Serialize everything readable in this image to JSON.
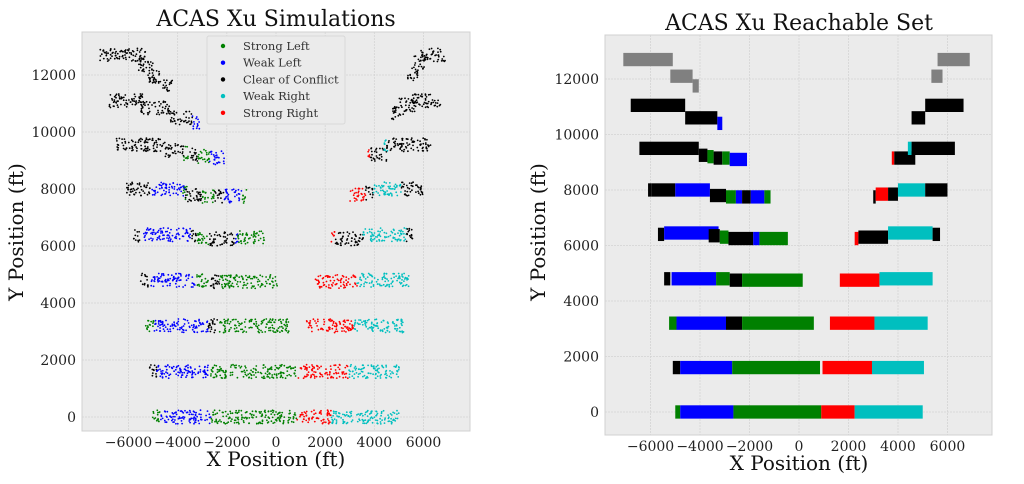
{
  "chart_data": [
    {
      "type": "scatter",
      "title": "ACAS Xu Simulations",
      "xlabel": "X Position (ft)",
      "ylabel": "Y Position (ft)",
      "xlim": [
        -7890,
        7890
      ],
      "ylim": [
        -490,
        13510
      ],
      "xticks": [
        -6000,
        -4000,
        -2000,
        0,
        2000,
        4000,
        6000
      ],
      "yticks": [
        0,
        2000,
        4000,
        6000,
        8000,
        10000,
        12000
      ],
      "grid": true,
      "legend_position": "top-center",
      "classes": [
        {
          "name": "Strong Left",
          "color": "#008000"
        },
        {
          "name": "Weak Left",
          "color": "#0000ff"
        },
        {
          "name": "Clear of Conflict",
          "color": "#000000"
        },
        {
          "name": "Weak Right",
          "color": "#00bfbf"
        },
        {
          "name": "Strong Right",
          "color": "#ff0000"
        }
      ],
      "segments_format": [
        "x_start",
        "x_end",
        "y",
        "class_index"
      ],
      "segments": [
        [
          -5050,
          -4700,
          0,
          0
        ],
        [
          -4700,
          -2650,
          0,
          1
        ],
        [
          -2650,
          850,
          0,
          0
        ],
        [
          850,
          2250,
          0,
          4
        ],
        [
          2250,
          5000,
          0,
          3
        ],
        [
          -5150,
          -4850,
          1600,
          2
        ],
        [
          -4850,
          -2700,
          1600,
          1
        ],
        [
          -2700,
          800,
          1600,
          0
        ],
        [
          900,
          2950,
          1600,
          4
        ],
        [
          2950,
          5050,
          1600,
          3
        ],
        [
          -5300,
          -4950,
          3200,
          0
        ],
        [
          -4950,
          -2750,
          3200,
          1
        ],
        [
          -2750,
          -2300,
          3200,
          2
        ],
        [
          -2300,
          550,
          3200,
          0
        ],
        [
          1200,
          3150,
          3200,
          4
        ],
        [
          3150,
          5200,
          3200,
          3
        ],
        [
          -5500,
          -5200,
          4800,
          2
        ],
        [
          -5100,
          -3300,
          4800,
          1
        ],
        [
          -3300,
          -2750,
          4800,
          0
        ],
        [
          -2750,
          -2300,
          4750,
          2
        ],
        [
          -2300,
          100,
          4750,
          0
        ],
        [
          1600,
          3300,
          4750,
          4
        ],
        [
          3300,
          5400,
          4800,
          3
        ],
        [
          -5800,
          -5550,
          6350,
          2
        ],
        [
          -5400,
          -3450,
          6400,
          1
        ],
        [
          -3450,
          -3200,
          6350,
          2
        ],
        [
          -3200,
          -2700,
          6250,
          0
        ],
        [
          -2700,
          -1700,
          6250,
          2
        ],
        [
          -1700,
          -1550,
          6250,
          1
        ],
        [
          -1550,
          -450,
          6300,
          0
        ],
        [
          2250,
          2400,
          6300,
          4
        ],
        [
          2400,
          3400,
          6250,
          2
        ],
        [
          3400,
          3550,
          6300,
          2
        ],
        [
          3550,
          5300,
          6400,
          3
        ],
        [
          5300,
          5600,
          6400,
          2
        ],
        [
          -6100,
          -5100,
          8000,
          2
        ],
        [
          -5050,
          -3700,
          8000,
          1
        ],
        [
          -3800,
          -3600,
          7850,
          0
        ],
        [
          -3700,
          -3000,
          7800,
          2
        ],
        [
          -3000,
          -2500,
          7750,
          0
        ],
        [
          -2500,
          -2100,
          7750,
          2
        ],
        [
          -2100,
          -1400,
          7750,
          1
        ],
        [
          -1400,
          -1200,
          7750,
          0
        ],
        [
          3000,
          3650,
          7800,
          4
        ],
        [
          3650,
          3950,
          7850,
          2
        ],
        [
          3950,
          5100,
          8000,
          3
        ],
        [
          5100,
          6000,
          8000,
          2
        ],
        [
          -6500,
          -4500,
          9550,
          2
        ],
        [
          -4500,
          -3750,
          9350,
          2
        ],
        [
          -3750,
          -3550,
          9250,
          0
        ],
        [
          -3550,
          -3200,
          9200,
          2
        ],
        [
          -3200,
          -2700,
          9150,
          0
        ],
        [
          -2700,
          -2100,
          9100,
          1
        ],
        [
          3750,
          3850,
          9150,
          4
        ],
        [
          3850,
          4500,
          9200,
          2
        ],
        [
          4400,
          4600,
          9550,
          3
        ],
        [
          4500,
          6300,
          9550,
          2
        ],
        [
          -6900,
          -5400,
          11100,
          2
        ],
        [
          -5500,
          -4300,
          10850,
          2
        ],
        [
          -4300,
          -3400,
          10500,
          2
        ],
        [
          -3400,
          -3100,
          10350,
          1
        ],
        [
          4700,
          5200,
          10650,
          2
        ],
        [
          5000,
          5700,
          10950,
          2
        ],
        [
          5500,
          6700,
          11100,
          2
        ],
        [
          -7200,
          -5300,
          12700,
          2
        ],
        [
          -5600,
          -5000,
          12350,
          2
        ],
        [
          -5200,
          -4500,
          11950,
          2
        ],
        [
          -4600,
          -4200,
          11650,
          2
        ],
        [
          5350,
          5800,
          12050,
          2
        ],
        [
          5600,
          6050,
          12450,
          2
        ],
        [
          5900,
          6900,
          12700,
          2
        ]
      ]
    },
    {
      "type": "area",
      "title": "ACAS Xu Reachable Set",
      "xlabel": "X Position (ft)",
      "ylabel": "Y Position (ft)",
      "xlim": [
        -7840,
        7800
      ],
      "ylim": [
        -830,
        13585
      ],
      "xticks": [
        -6000,
        -4000,
        -2000,
        0,
        2000,
        4000,
        6000
      ],
      "yticks": [
        0,
        2000,
        4000,
        6000,
        8000,
        10000,
        12000
      ],
      "grid": true,
      "classes": [
        {
          "color": "#008000"
        },
        {
          "color": "#0000ff"
        },
        {
          "color": "#000000"
        },
        {
          "color": "#00bfbf"
        },
        {
          "color": "#ff0000"
        },
        {
          "color": "#808080"
        }
      ],
      "segments_format": [
        "x_start",
        "x_end",
        "y",
        "class_index"
      ],
      "segments": [
        [
          -5000,
          -4800,
          0,
          0
        ],
        [
          -4800,
          -2650,
          0,
          1
        ],
        [
          -2650,
          900,
          0,
          0
        ],
        [
          900,
          2250,
          0,
          4
        ],
        [
          2250,
          5000,
          0,
          3
        ],
        [
          -5100,
          -4800,
          1600,
          2
        ],
        [
          -4800,
          -2700,
          1600,
          1
        ],
        [
          -2700,
          850,
          1600,
          0
        ],
        [
          950,
          2950,
          1600,
          4
        ],
        [
          2950,
          5050,
          1600,
          3
        ],
        [
          -5250,
          -4950,
          3200,
          0
        ],
        [
          -4950,
          -2950,
          3200,
          1
        ],
        [
          -2950,
          -2300,
          3200,
          2
        ],
        [
          -2300,
          600,
          3200,
          0
        ],
        [
          1250,
          3050,
          3200,
          4
        ],
        [
          3050,
          5200,
          3200,
          3
        ],
        [
          -5450,
          -5200,
          4800,
          2
        ],
        [
          -5150,
          -3350,
          4800,
          1
        ],
        [
          -3350,
          -2800,
          4800,
          0
        ],
        [
          -2800,
          -2300,
          4750,
          2
        ],
        [
          -2300,
          150,
          4750,
          0
        ],
        [
          1650,
          3250,
          4750,
          4
        ],
        [
          3250,
          5400,
          4800,
          3
        ],
        [
          -5700,
          -5450,
          6400,
          2
        ],
        [
          -5450,
          -3250,
          6450,
          1
        ],
        [
          -3650,
          -3200,
          6350,
          2
        ],
        [
          -3200,
          -2850,
          6300,
          0
        ],
        [
          -2850,
          -1850,
          6250,
          2
        ],
        [
          -1850,
          -1600,
          6250,
          1
        ],
        [
          -1600,
          -450,
          6250,
          0
        ],
        [
          2250,
          2400,
          6250,
          4
        ],
        [
          2400,
          3600,
          6300,
          2
        ],
        [
          3600,
          5400,
          6450,
          3
        ],
        [
          5400,
          5700,
          6400,
          2
        ],
        [
          -6100,
          -5950,
          8000,
          2
        ],
        [
          -5950,
          -5000,
          8000,
          2
        ],
        [
          -5000,
          -3600,
          8000,
          1
        ],
        [
          -3600,
          -2950,
          7800,
          2
        ],
        [
          -2950,
          -2550,
          7750,
          0
        ],
        [
          -2550,
          -2300,
          7750,
          1
        ],
        [
          -2300,
          -1950,
          7750,
          2
        ],
        [
          -1950,
          -1400,
          7750,
          1
        ],
        [
          -1400,
          -1150,
          7750,
          0
        ],
        [
          3000,
          3100,
          7750,
          2
        ],
        [
          3100,
          3600,
          7850,
          4
        ],
        [
          3600,
          4000,
          7850,
          2
        ],
        [
          4000,
          5100,
          8000,
          3
        ],
        [
          5100,
          6000,
          8000,
          2
        ],
        [
          -6450,
          -4050,
          9500,
          2
        ],
        [
          -4050,
          -3700,
          9250,
          2
        ],
        [
          -3700,
          -3450,
          9200,
          0
        ],
        [
          -3450,
          -3100,
          9150,
          2
        ],
        [
          -3100,
          -2800,
          9150,
          0
        ],
        [
          -2800,
          -2100,
          9100,
          1
        ],
        [
          3750,
          3850,
          9150,
          4
        ],
        [
          3850,
          4700,
          9150,
          2
        ],
        [
          4400,
          4550,
          9500,
          3
        ],
        [
          4550,
          6300,
          9500,
          2
        ],
        [
          -6800,
          -4600,
          11050,
          2
        ],
        [
          -4600,
          -3300,
          10600,
          2
        ],
        [
          -3300,
          -3100,
          10400,
          1
        ],
        [
          4550,
          5100,
          10600,
          2
        ],
        [
          5100,
          6650,
          11050,
          2
        ],
        [
          -7100,
          -5100,
          12700,
          5
        ],
        [
          -5200,
          -4300,
          12100,
          5
        ],
        [
          -4300,
          -4050,
          11750,
          5
        ],
        [
          5350,
          5800,
          12100,
          5
        ],
        [
          5600,
          6900,
          12700,
          5
        ]
      ]
    }
  ]
}
